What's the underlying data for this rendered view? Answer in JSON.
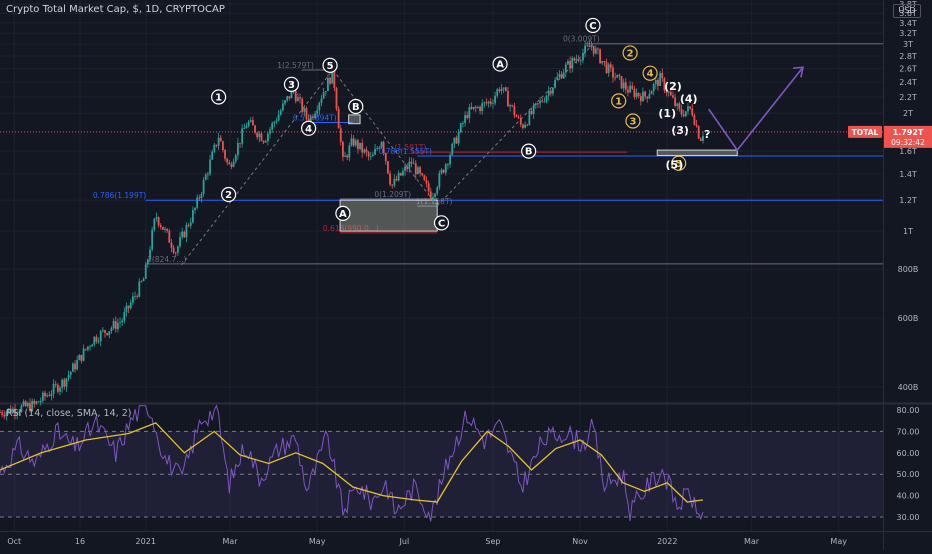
{
  "header": {
    "title": "Crypto Total Market Cap, $, 1D, CRYPTOCAP",
    "currency": "USD"
  },
  "rsi": {
    "label": "RSI (14, close, SMA, 14, 2)"
  },
  "price_tag": {
    "symbol": "TOTAL",
    "value": "1.792T",
    "countdown": "09:32:42"
  },
  "colors": {
    "background": "#131722",
    "up": "#26a69a",
    "down": "#ef5350",
    "grid": "#1e222d",
    "rsi_line": "#7e57c2",
    "rsi_ma": "#e6c229",
    "fib_blue": "#2962ff",
    "fib_red": "#b22833",
    "wave_yellow": "#e5b94f",
    "projection": "#7e57c2"
  },
  "chart_data": [
    {
      "type": "candlestick",
      "title": "Crypto Total Market Cap, $, 1D, CRYPTOCAP",
      "y_scale": "log",
      "ylim": [
        370000000000,
        3900000000000
      ],
      "y_ticks": [
        "3.8T",
        "3.6T",
        "3.4T",
        "3.2T",
        "3T",
        "2.8T",
        "2.6T",
        "2.4T",
        "2.2T",
        "2T",
        "1.6T",
        "1.4T",
        "1.2T",
        "1T",
        "800B",
        "600B",
        "400B"
      ],
      "y_tick_values": [
        3800000000000.0,
        3600000000000.0,
        3400000000000.0,
        3200000000000.0,
        3000000000000.0,
        2800000000000.0,
        2600000000000.0,
        2400000000000.0,
        2200000000000.0,
        2000000000000.0,
        1600000000000.0,
        1400000000000.0,
        1200000000000.0,
        1000000000000.0,
        800000000000.0,
        600000000000.0,
        400000000000.0
      ],
      "x_ticks": [
        "Oct",
        "16",
        "2021",
        "Mar",
        "May",
        "Jul",
        "Sep",
        "Nov",
        "2022",
        "Mar",
        "May"
      ],
      "x_tick_dates": [
        "2020-10-01",
        "2020-11-16",
        "2021-01-01",
        "2021-03-01",
        "2021-05-01",
        "2021-07-01",
        "2021-09-01",
        "2021-11-01",
        "2022-01-01",
        "2022-03-01",
        "2022-05-01"
      ],
      "xlim": [
        "2020-09-21",
        "2022-06-01"
      ],
      "close_path": [
        [
          "2020-09-21",
          345000000000.0
        ],
        [
          "2020-10-15",
          360000000000.0
        ],
        [
          "2020-11-05",
          415000000000.0
        ],
        [
          "2020-11-25",
          530000000000.0
        ],
        [
          "2020-12-15",
          590000000000.0
        ],
        [
          "2020-12-31",
          760000000000.0
        ],
        [
          "2021-01-08",
          1100000000000.0
        ],
        [
          "2021-01-22",
          890000000000.0
        ],
        [
          "2021-02-05",
          1150000000000.0
        ],
        [
          "2021-02-21",
          1750000000000.0
        ],
        [
          "2021-02-28",
          1450000000000.0
        ],
        [
          "2021-03-13",
          1900000000000.0
        ],
        [
          "2021-03-25",
          1720000000000.0
        ],
        [
          "2021-04-14",
          2300000000000.0
        ],
        [
          "2021-04-25",
          1900000000000.0
        ],
        [
          "2021-05-12",
          2550000000000.0
        ],
        [
          "2021-05-19",
          1500000000000.0
        ],
        [
          "2021-05-26",
          1700000000000.0
        ],
        [
          "2021-06-08",
          1520000000000.0
        ],
        [
          "2021-06-15",
          1720000000000.0
        ],
        [
          "2021-06-22",
          1300000000000.0
        ],
        [
          "2021-07-06",
          1500000000000.0
        ],
        [
          "2021-07-20",
          1230000000000.0
        ],
        [
          "2021-08-01",
          1550000000000.0
        ],
        [
          "2021-08-14",
          2000000000000.0
        ],
        [
          "2021-08-31",
          2150000000000.0
        ],
        [
          "2021-09-06",
          2350000000000.0
        ],
        [
          "2021-09-21",
          1850000000000.0
        ],
        [
          "2021-10-05",
          2150000000000.0
        ],
        [
          "2021-10-21",
          2600000000000.0
        ],
        [
          "2021-11-09",
          2980000000000.0
        ],
        [
          "2021-11-20",
          2600000000000.0
        ],
        [
          "2021-12-04",
          2300000000000.0
        ],
        [
          "2021-12-16",
          2200000000000.0
        ],
        [
          "2021-12-27",
          2450000000000.0
        ],
        [
          "2022-01-10",
          2000000000000.0
        ],
        [
          "2022-01-18",
          2050000000000.0
        ],
        [
          "2022-01-24",
          1720000000000.0
        ],
        [
          "2022-01-26",
          1790000000000.0
        ]
      ],
      "last_value": 1792000000000.0,
      "horizontal_levels": [
        {
          "label": "0(3.009T)",
          "value": 3009000000000.0,
          "color": "#787b86"
        },
        {
          "label": "1(2.579T)",
          "value": 2579000000000.0,
          "color": "#787b86"
        },
        {
          "label": "0.786(1.199T)",
          "value": 1199000000000.0,
          "color": "#2962ff"
        },
        {
          "label": "0(1.209T)",
          "value": 1209000000000.0,
          "color": "#787b86"
        },
        {
          "label": "1(1.158T)",
          "value": 1158000000000.0,
          "color": "#787b86"
        },
        {
          "label": "1(824.7...)",
          "value": 824700000000.0,
          "color": "#787b86"
        },
        {
          "label": "(1.591T)",
          "value": 1591000000000.0,
          "color": "#b22833"
        },
        {
          "label": "0.786(1.555T)",
          "value": 1555000000000.0,
          "color": "#2962ff"
        },
        {
          "label": "0.618(990.0...)",
          "value": 990000000000.0,
          "color": "#b22833"
        },
        {
          "label": "0.5(1.894T)",
          "value": 1894000000000.0,
          "color": "#2962ff"
        }
      ],
      "zones": [
        {
          "from": "2021-05-17",
          "to": "2021-07-24",
          "low": 1000000000000.0,
          "high": 1200000000000.0
        },
        {
          "from": "2021-05-23",
          "to": "2021-05-31",
          "low": 1880000000000.0,
          "high": 1980000000000.0
        },
        {
          "from": "2021-12-25",
          "to": "2022-02-19",
          "low": 1560000000000.0,
          "high": 1610000000000.0
        }
      ],
      "waves": [
        {
          "label": "1",
          "date": "2021-02-21",
          "value": 2200000000000.0,
          "style": "white"
        },
        {
          "label": "2",
          "date": "2021-02-28",
          "value": 1240000000000.0,
          "style": "white"
        },
        {
          "label": "3",
          "date": "2021-04-13",
          "value": 2370000000000.0,
          "style": "white"
        },
        {
          "label": "4",
          "date": "2021-04-25",
          "value": 1830000000000.0,
          "style": "white"
        },
        {
          "label": "5",
          "date": "2021-05-10",
          "value": 2650000000000.0,
          "style": "white"
        },
        {
          "label": "A",
          "date": "2021-05-19",
          "value": 1110000000000.0,
          "style": "white"
        },
        {
          "label": "B",
          "date": "2021-05-28",
          "value": 2080000000000.0,
          "style": "white"
        },
        {
          "label": "C",
          "date": "2021-07-27",
          "value": 1050000000000.0,
          "style": "white"
        },
        {
          "label": "A",
          "date": "2021-09-06",
          "value": 2670000000000.0,
          "style": "white"
        },
        {
          "label": "B",
          "date": "2021-09-26",
          "value": 1600000000000.0,
          "style": "white"
        },
        {
          "label": "C",
          "date": "2021-11-10",
          "value": 3350000000000.0,
          "style": "white"
        },
        {
          "label": "1",
          "date": "2021-11-28",
          "value": 2150000000000.0,
          "style": "yellow"
        },
        {
          "label": "2",
          "date": "2021-12-06",
          "value": 2850000000000.0,
          "style": "yellow"
        },
        {
          "label": "3",
          "date": "2021-12-08",
          "value": 1910000000000.0,
          "style": "yellow"
        },
        {
          "label": "4",
          "date": "2021-12-20",
          "value": 2530000000000.0,
          "style": "yellow"
        },
        {
          "label": "5",
          "date": "2022-01-09",
          "value": 1490000000000.0,
          "style": "yellow"
        },
        {
          "label": "(1)",
          "date": "2022-01-01",
          "value": 2000000000000.0,
          "style": "text"
        },
        {
          "label": "(2)",
          "date": "2022-01-05",
          "value": 2350000000000.0,
          "style": "text"
        },
        {
          "label": "(3)",
          "date": "2022-01-10",
          "value": 1810000000000.0,
          "style": "text"
        },
        {
          "label": "(4)",
          "date": "2022-01-16",
          "value": 2180000000000.0,
          "style": "text"
        },
        {
          "label": "(5)",
          "date": "2022-01-06",
          "value": 1480000000000.0,
          "style": "text"
        },
        {
          "label": "?",
          "date": "2022-01-29",
          "value": 1770000000000.0,
          "style": "text"
        }
      ],
      "projection": [
        [
          "2022-01-30",
          2050000000000.0
        ],
        [
          "2022-02-19",
          1610000000000.0
        ],
        [
          "2022-04-06",
          2620000000000.0
        ]
      ]
    },
    {
      "type": "line",
      "title": "RSI (14, close, SMA, 14, 2)",
      "ylim": [
        25,
        82
      ],
      "y_ticks": [
        80.0,
        70.0,
        60.0,
        50.0,
        40.0,
        30.0
      ],
      "y_tick_labels": [
        "80.00",
        "70.00",
        "60.00",
        "50.00",
        "40.00",
        "30.00"
      ],
      "band": [
        30,
        70
      ],
      "midline": 50,
      "series": [
        {
          "values_by_date": [
            [
              "2020-09-21",
              51
            ],
            [
              "2020-10-04",
              63
            ],
            [
              "2020-10-16",
              55
            ],
            [
              "2020-10-30",
              70
            ],
            [
              "2020-11-13",
              62
            ],
            [
              "2020-11-27",
              74
            ],
            [
              "2020-12-11",
              60
            ],
            [
              "2020-12-24",
              78
            ],
            [
              "2021-01-04",
              81
            ],
            [
              "2021-01-14",
              58
            ],
            [
              "2021-01-26",
              48
            ],
            [
              "2021-02-09",
              76
            ],
            [
              "2021-02-20",
              80
            ],
            [
              "2021-02-28",
              45
            ],
            [
              "2021-03-12",
              64
            ],
            [
              "2021-03-22",
              48
            ],
            [
              "2021-04-04",
              62
            ],
            [
              "2021-04-16",
              67
            ],
            [
              "2021-04-24",
              42
            ],
            [
              "2021-05-08",
              68
            ],
            [
              "2021-05-19",
              33
            ],
            [
              "2021-05-30",
              45
            ],
            [
              "2021-06-08",
              37
            ],
            [
              "2021-06-18",
              46
            ],
            [
              "2021-06-25",
              32
            ],
            [
              "2021-07-08",
              44
            ],
            [
              "2021-07-20",
              31
            ],
            [
              "2021-08-02",
              59
            ],
            [
              "2021-08-14",
              78
            ],
            [
              "2021-08-26",
              66
            ],
            [
              "2021-09-06",
              73
            ],
            [
              "2021-09-21",
              44
            ],
            [
              "2021-10-06",
              66
            ],
            [
              "2021-10-21",
              70
            ],
            [
              "2021-11-03",
              64
            ],
            [
              "2021-11-10",
              72
            ],
            [
              "2021-11-18",
              45
            ],
            [
              "2021-12-01",
              50
            ],
            [
              "2021-12-06",
              33
            ],
            [
              "2021-12-20",
              46
            ],
            [
              "2021-12-29",
              52
            ],
            [
              "2022-01-08",
              35
            ],
            [
              "2022-01-17",
              42
            ],
            [
              "2022-01-22",
              30
            ],
            [
              "2022-01-26",
              34
            ]
          ]
        },
        {
          "values_by_date": [
            [
              "2020-09-21",
              52
            ],
            [
              "2020-10-20",
              60
            ],
            [
              "2020-11-20",
              66
            ],
            [
              "2020-12-20",
              69
            ],
            [
              "2021-01-08",
              74
            ],
            [
              "2021-01-28",
              60
            ],
            [
              "2021-02-18",
              70
            ],
            [
              "2021-03-08",
              59
            ],
            [
              "2021-03-28",
              55
            ],
            [
              "2021-04-16",
              60
            ],
            [
              "2021-05-05",
              55
            ],
            [
              "2021-05-26",
              44
            ],
            [
              "2021-06-16",
              40
            ],
            [
              "2021-07-08",
              38
            ],
            [
              "2021-07-24",
              37
            ],
            [
              "2021-08-10",
              56
            ],
            [
              "2021-08-28",
              70
            ],
            [
              "2021-09-12",
              63
            ],
            [
              "2021-09-28",
              52
            ],
            [
              "2021-10-15",
              62
            ],
            [
              "2021-11-01",
              66
            ],
            [
              "2021-11-16",
              59
            ],
            [
              "2021-12-01",
              46
            ],
            [
              "2021-12-16",
              42
            ],
            [
              "2022-01-01",
              46
            ],
            [
              "2022-01-15",
              37
            ],
            [
              "2022-01-26",
              38
            ]
          ]
        }
      ]
    }
  ]
}
